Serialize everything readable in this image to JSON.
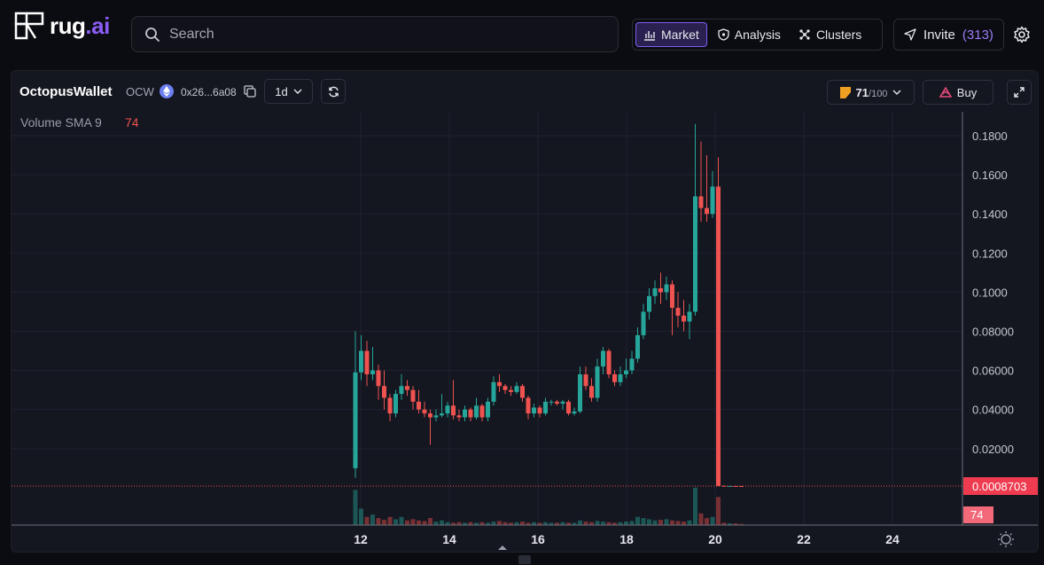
{
  "header": {
    "logo": {
      "text_main": "rug",
      "text_dot": ".",
      "text_ai": "ai"
    },
    "search": {
      "placeholder": "Search"
    },
    "nav": [
      {
        "label": "Market",
        "icon": "chart-icon",
        "active": true
      },
      {
        "label": "Analysis",
        "icon": "shield-icon",
        "active": false
      },
      {
        "label": "Clusters",
        "icon": "clusters-icon",
        "active": false
      }
    ],
    "invite": {
      "label": "Invite",
      "count": "(313)"
    }
  },
  "token": {
    "name": "OctopusWallet",
    "ticker": "OCW",
    "address": "0x26...6a08",
    "interval": "1d",
    "score": "71",
    "score_max": "/100",
    "buy_label": "Buy"
  },
  "chart_data": {
    "type": "candlestick",
    "indicator": {
      "label": "Volume SMA 9",
      "value": "74"
    },
    "x_ticks": [
      "12",
      "14",
      "16",
      "18",
      "20",
      "22",
      "24"
    ],
    "y_ticks": [
      "0.1800",
      "0.1600",
      "0.1400",
      "0.1200",
      "0.1000",
      "0.08000",
      "0.06000",
      "0.04000",
      "0.02000"
    ],
    "ylim": [
      0,
      0.19
    ],
    "current_price_label": "0.0008703",
    "current_price": 0.0008703,
    "volume_label": "74",
    "colors": {
      "up": "#26a69a",
      "down": "#ef5350",
      "bg": "#141620",
      "grid": "#1f2230"
    },
    "candles": [
      [
        0.01,
        0.059,
        0.08,
        0.005
      ],
      [
        0.059,
        0.07,
        0.078,
        0.055
      ],
      [
        0.07,
        0.058,
        0.075,
        0.052
      ],
      [
        0.058,
        0.06,
        0.072,
        0.055
      ],
      [
        0.06,
        0.052,
        0.063,
        0.045
      ],
      [
        0.052,
        0.046,
        0.06,
        0.04
      ],
      [
        0.046,
        0.038,
        0.048,
        0.034
      ],
      [
        0.038,
        0.048,
        0.05,
        0.036
      ],
      [
        0.048,
        0.052,
        0.058,
        0.045
      ],
      [
        0.052,
        0.05,
        0.055,
        0.047
      ],
      [
        0.05,
        0.044,
        0.052,
        0.04
      ],
      [
        0.044,
        0.04,
        0.05,
        0.038
      ],
      [
        0.04,
        0.038,
        0.044,
        0.036
      ],
      [
        0.038,
        0.036,
        0.04,
        0.022
      ],
      [
        0.036,
        0.037,
        0.04,
        0.034
      ],
      [
        0.037,
        0.038,
        0.048,
        0.036
      ],
      [
        0.038,
        0.042,
        0.044,
        0.036
      ],
      [
        0.042,
        0.037,
        0.055,
        0.035
      ],
      [
        0.037,
        0.036,
        0.04,
        0.034
      ],
      [
        0.036,
        0.04,
        0.042,
        0.034
      ],
      [
        0.04,
        0.036,
        0.041,
        0.034
      ],
      [
        0.036,
        0.042,
        0.046,
        0.035
      ],
      [
        0.042,
        0.036,
        0.043,
        0.034
      ],
      [
        0.036,
        0.044,
        0.046,
        0.034
      ],
      [
        0.044,
        0.054,
        0.057,
        0.042
      ],
      [
        0.054,
        0.052,
        0.058,
        0.049
      ],
      [
        0.052,
        0.05,
        0.053,
        0.048
      ],
      [
        0.05,
        0.049,
        0.052,
        0.047
      ],
      [
        0.049,
        0.052,
        0.054,
        0.048
      ],
      [
        0.052,
        0.046,
        0.053,
        0.044
      ],
      [
        0.046,
        0.038,
        0.047,
        0.035
      ],
      [
        0.038,
        0.041,
        0.043,
        0.036
      ],
      [
        0.041,
        0.038,
        0.042,
        0.036
      ],
      [
        0.038,
        0.044,
        0.046,
        0.037
      ],
      [
        0.044,
        0.044,
        0.045,
        0.042
      ],
      [
        0.044,
        0.043,
        0.045,
        0.042
      ],
      [
        0.043,
        0.044,
        0.045,
        0.04
      ],
      [
        0.044,
        0.038,
        0.045,
        0.037
      ],
      [
        0.038,
        0.039,
        0.041,
        0.037
      ],
      [
        0.039,
        0.058,
        0.062,
        0.038
      ],
      [
        0.058,
        0.052,
        0.062,
        0.05
      ],
      [
        0.052,
        0.046,
        0.056,
        0.044
      ],
      [
        0.046,
        0.062,
        0.066,
        0.044
      ],
      [
        0.062,
        0.07,
        0.072,
        0.058
      ],
      [
        0.07,
        0.058,
        0.071,
        0.056
      ],
      [
        0.058,
        0.054,
        0.06,
        0.052
      ],
      [
        0.054,
        0.058,
        0.062,
        0.052
      ],
      [
        0.058,
        0.06,
        0.066,
        0.056
      ],
      [
        0.06,
        0.066,
        0.07,
        0.058
      ],
      [
        0.066,
        0.078,
        0.082,
        0.064
      ],
      [
        0.078,
        0.09,
        0.094,
        0.076
      ],
      [
        0.09,
        0.098,
        0.102,
        0.086
      ],
      [
        0.098,
        0.102,
        0.106,
        0.094
      ],
      [
        0.102,
        0.1,
        0.11,
        0.094
      ],
      [
        0.1,
        0.104,
        0.108,
        0.096
      ],
      [
        0.104,
        0.092,
        0.106,
        0.078
      ],
      [
        0.092,
        0.088,
        0.1,
        0.082
      ],
      [
        0.088,
        0.085,
        0.096,
        0.08
      ],
      [
        0.085,
        0.09,
        0.094,
        0.076
      ],
      [
        0.09,
        0.149,
        0.186,
        0.088
      ],
      [
        0.149,
        0.143,
        0.177,
        0.136
      ],
      [
        0.143,
        0.14,
        0.17,
        0.136
      ],
      [
        0.14,
        0.154,
        0.162,
        0.138
      ],
      [
        0.154,
        0.001,
        0.169,
        0.0008
      ],
      [
        0.001,
        0.0009,
        0.0012,
        0.0008
      ],
      [
        0.0009,
        0.0009,
        0.001,
        0.0008
      ],
      [
        0.0009,
        0.00088,
        0.001,
        0.0008
      ],
      [
        0.00088,
        0.00087,
        0.0009,
        0.0008
      ]
    ],
    "volumes": [
      60,
      28,
      14,
      18,
      12,
      9,
      14,
      10,
      14,
      8,
      10,
      8,
      7,
      12,
      6,
      8,
      5,
      4,
      5,
      4,
      5,
      4,
      5,
      4,
      6,
      7,
      5,
      4,
      5,
      6,
      4,
      5,
      4,
      5,
      4,
      4,
      5,
      4,
      4,
      8,
      6,
      5,
      7,
      6,
      5,
      4,
      5,
      6,
      7,
      14,
      12,
      10,
      8,
      9,
      10,
      8,
      7,
      6,
      8,
      64,
      20,
      12,
      14,
      48,
      4,
      3,
      3,
      2
    ]
  }
}
